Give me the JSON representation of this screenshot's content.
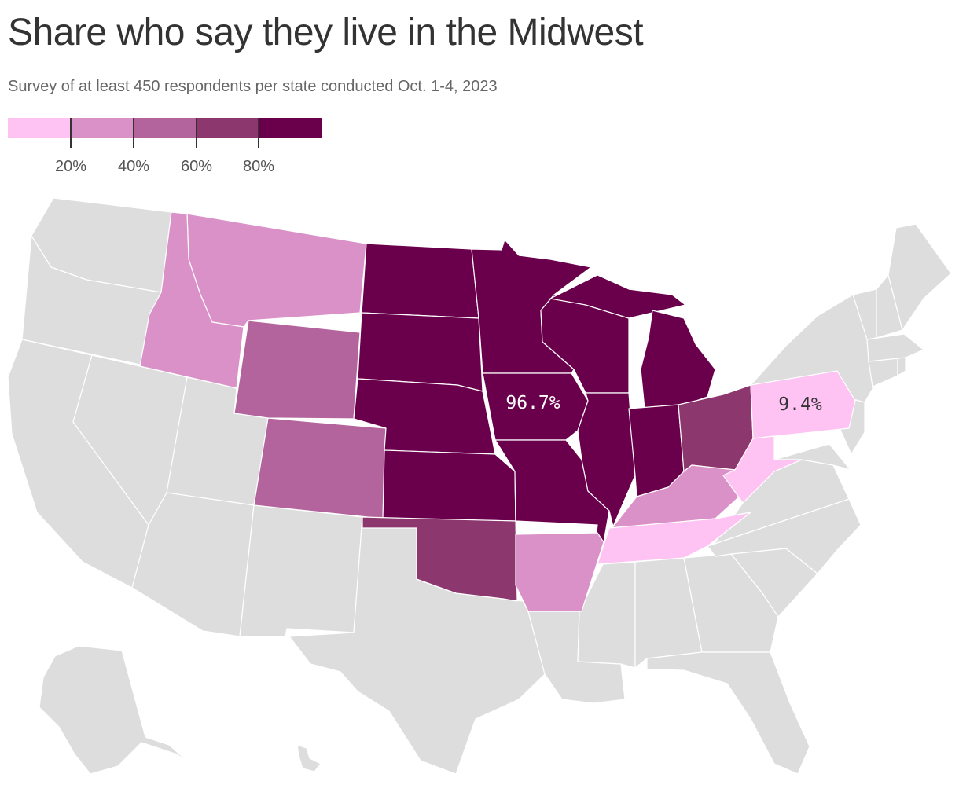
{
  "title": "Share who say they live in the Midwest",
  "subtitle": "Survey of at least 450 respondents per state conducted Oct. 1-4, 2023",
  "legend": {
    "bins": [
      {
        "color": "#fec2f3"
      },
      {
        "color": "#da91c8"
      },
      {
        "color": "#b3649c"
      },
      {
        "color": "#8c386f"
      },
      {
        "color": "#6a004c"
      }
    ],
    "ticks": [
      {
        "value": 20,
        "label": "20%"
      },
      {
        "value": 40,
        "label": "40%"
      },
      {
        "value": 60,
        "label": "60%"
      },
      {
        "value": 80,
        "label": "80%"
      }
    ],
    "min": 0,
    "max": 100
  },
  "colors": {
    "no_data": "#dddddd",
    "label_light_text": "#ffffff",
    "label_dark_text": "#333333"
  },
  "map_labels": {
    "iowa": "96.7%",
    "pennsylvania": "9.4%"
  },
  "states": {
    "ND": {
      "name": "North Dakota",
      "bin": 4
    },
    "SD": {
      "name": "South Dakota",
      "bin": 4
    },
    "NE": {
      "name": "Nebraska",
      "bin": 4
    },
    "KS": {
      "name": "Kansas",
      "bin": 4
    },
    "MN": {
      "name": "Minnesota",
      "bin": 4
    },
    "IA": {
      "name": "Iowa",
      "bin": 4,
      "value": 96.7
    },
    "MO": {
      "name": "Missouri",
      "bin": 4
    },
    "WI": {
      "name": "Wisconsin",
      "bin": 4
    },
    "IL": {
      "name": "Illinois",
      "bin": 4
    },
    "MI": {
      "name": "Michigan",
      "bin": 4
    },
    "IN": {
      "name": "Indiana",
      "bin": 4
    },
    "OH": {
      "name": "Ohio",
      "bin": 3
    },
    "OK": {
      "name": "Oklahoma",
      "bin": 3
    },
    "WY": {
      "name": "Wyoming",
      "bin": 2
    },
    "CO": {
      "name": "Colorado",
      "bin": 2
    },
    "MT": {
      "name": "Montana",
      "bin": 1
    },
    "ID": {
      "name": "Idaho",
      "bin": 1
    },
    "KY": {
      "name": "Kentucky",
      "bin": 1
    },
    "AR": {
      "name": "Arkansas",
      "bin": 1
    },
    "PA": {
      "name": "Pennsylvania",
      "bin": 0,
      "value": 9.4
    },
    "WV": {
      "name": "West Virginia",
      "bin": 0
    },
    "TN": {
      "name": "Tennessee",
      "bin": 0
    }
  }
}
